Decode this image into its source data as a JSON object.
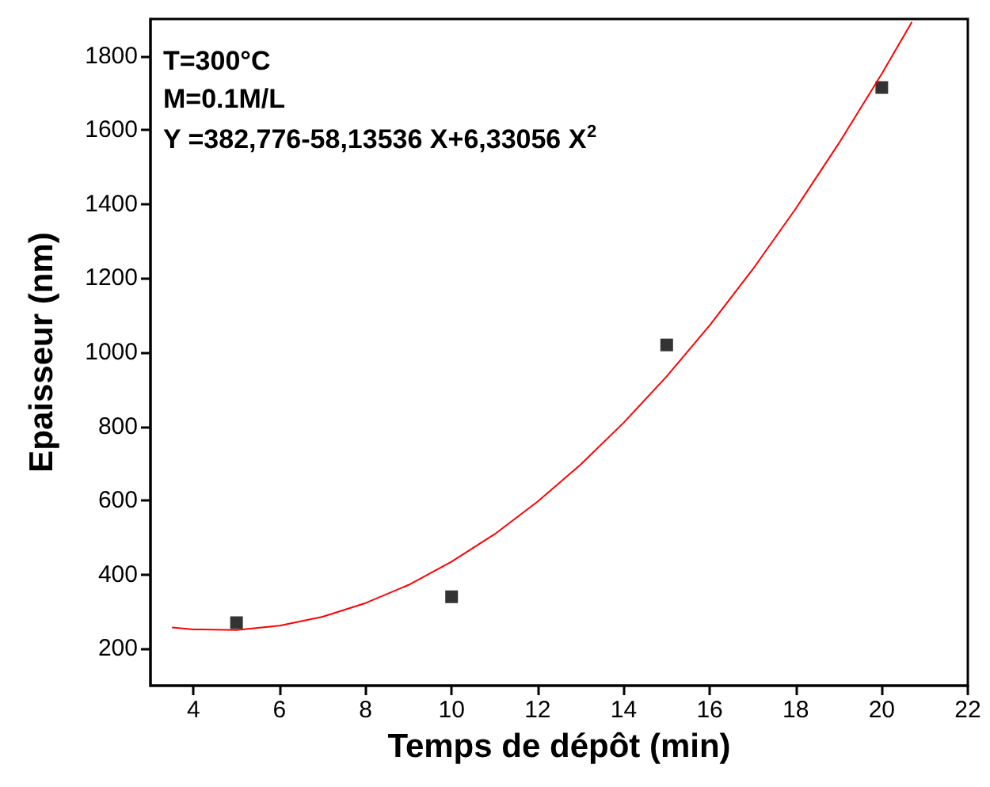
{
  "chart_data": {
    "type": "scatter",
    "xlabel": "Temps de dépôt (min)",
    "ylabel": "Epaisseur (nm)",
    "annotations": [
      "T=300°C",
      "M=0.1M/L",
      "Y =382,776-58,13536 X+6,33056 X$^{2}$"
    ],
    "series": [
      {
        "color": "#000000",
        "marker": "square",
        "x": [
          5,
          10,
          15,
          20
        ],
        "values": [
          270,
          340,
          1020,
          1715
        ]
      },
      {
        "type": "line",
        "color": "#ff0000",
        "marker": "none",
        "line_style": "solid",
        "x": [
          3.5,
          4,
          5,
          6,
          7,
          8,
          9,
          10,
          11,
          12,
          13,
          14,
          15,
          16,
          17,
          18,
          19,
          20,
          20.7
        ],
        "values": [
          257,
          252,
          250,
          262,
          286,
          323,
          372,
          435,
          509,
          597,
          697,
          810,
          935,
          1073,
          1224,
          1388,
          1564,
          1752,
          1892
        ]
      }
    ],
    "xlim": [
      3,
      22
    ],
    "xticks": [
      4,
      6,
      8,
      10,
      12,
      14,
      16,
      18,
      20,
      22
    ],
    "ylim": [
      100,
      1900
    ],
    "yticks": [
      200,
      400,
      600,
      800,
      1000,
      1200,
      1400,
      1600,
      1800
    ],
    "grid": false
  }
}
